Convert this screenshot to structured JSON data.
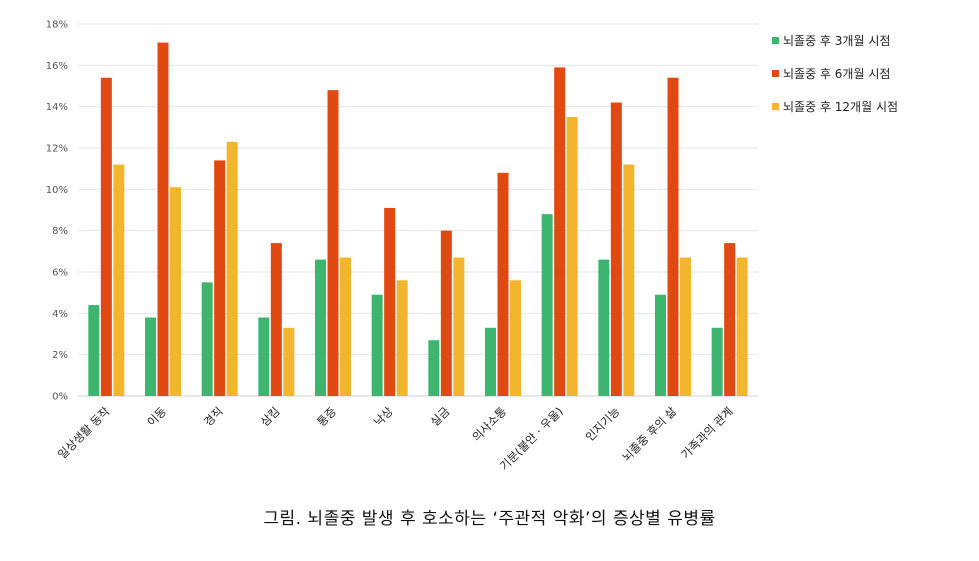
{
  "chart_data": {
    "type": "bar",
    "categories": [
      "일상생활 동작",
      "이동",
      "경직",
      "삼킴",
      "통증",
      "낙상",
      "실금",
      "의사소통",
      "기분(불안 · 우울)",
      "인지기능",
      "뇌졸중 후의 삶",
      "가족과의 관계"
    ],
    "series": [
      {
        "name": "뇌졸중 후 3개월 시점",
        "color": "#3db56f",
        "values": [
          4.4,
          3.8,
          5.5,
          3.8,
          6.6,
          4.9,
          2.7,
          3.3,
          8.8,
          6.6,
          4.9,
          3.3
        ]
      },
      {
        "name": "뇌졸중 후 6개월 시점",
        "color": "#e04a12",
        "values": [
          15.4,
          17.1,
          11.4,
          7.4,
          14.8,
          9.1,
          8.0,
          10.8,
          15.9,
          14.2,
          15.4,
          7.4
        ]
      },
      {
        "name": "뇌졸중 후 12개월 시점",
        "color": "#f2b52e",
        "values": [
          11.2,
          10.1,
          12.3,
          3.3,
          6.7,
          5.6,
          6.7,
          5.6,
          13.5,
          11.2,
          6.7,
          6.7
        ]
      }
    ],
    "yticks": [
      "0%",
      "2%",
      "4%",
      "6%",
      "8%",
      "10%",
      "12%",
      "14%",
      "16%",
      "18%"
    ],
    "ylim": [
      0,
      18
    ],
    "grid": true,
    "legend_position": "right",
    "title": "",
    "xlabel": "",
    "ylabel": ""
  },
  "caption": "그림. 뇌졸중 발생 후 호소하는 ‘주관적 악화’의 증상별 유병률"
}
